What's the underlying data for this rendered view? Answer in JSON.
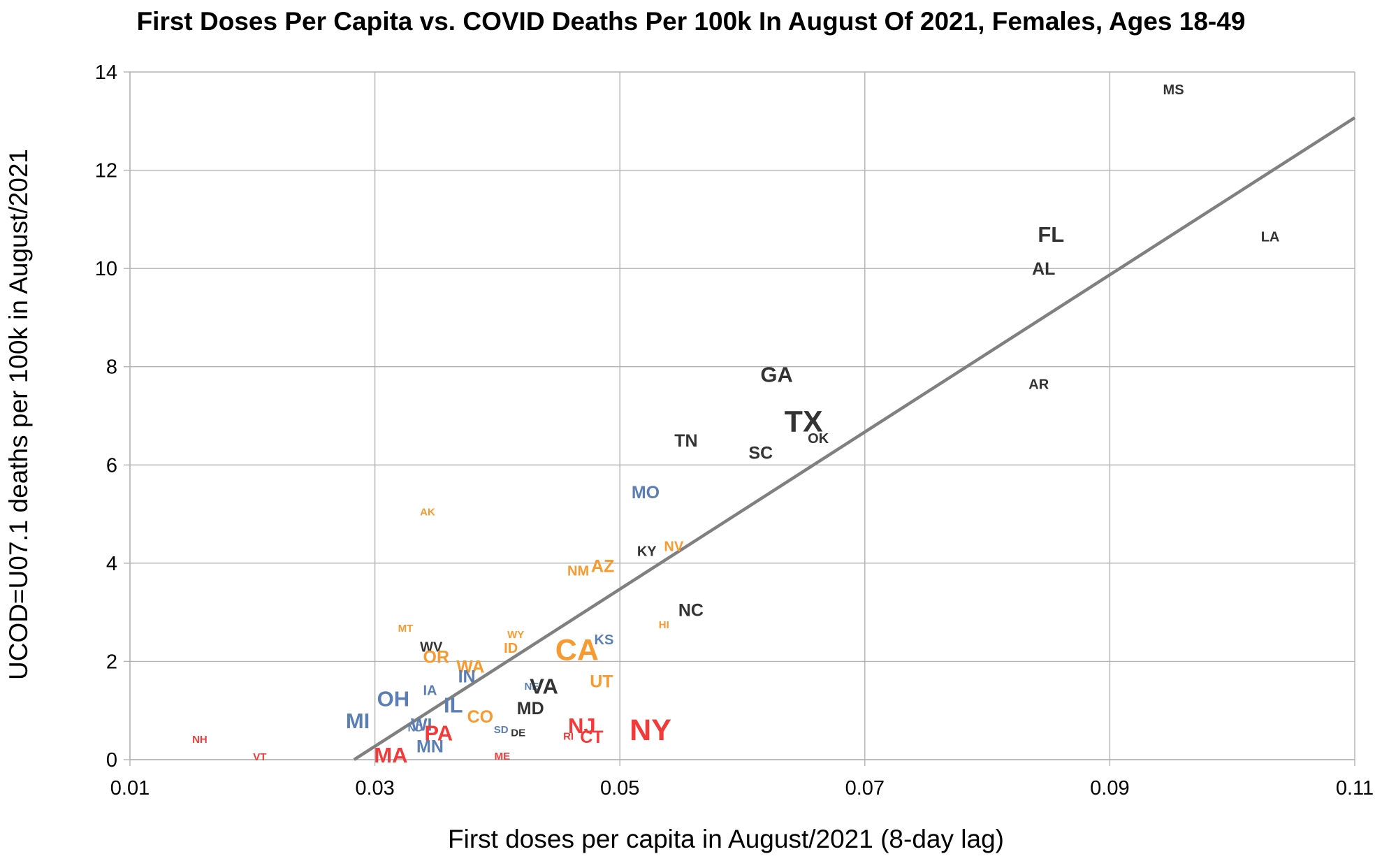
{
  "chart_data": {
    "type": "scatter",
    "title": "First Doses Per Capita vs. COVID Deaths Per 100k In August Of 2021, Females, Ages 18-49",
    "xlabel": "First doses per capita in August/2021 (8-day lag)",
    "ylabel": "UCOD=U07.1 deaths per 100k in August/2021",
    "xlim": [
      0.01,
      0.11
    ],
    "ylim": [
      0,
      14
    ],
    "x_ticks": [
      0.01,
      0.03,
      0.05,
      0.07,
      0.09,
      0.11
    ],
    "x_tick_labels": [
      "0.01",
      "0.03",
      "0.05",
      "0.07",
      "0.09",
      "0.11"
    ],
    "y_ticks": [
      0,
      2,
      4,
      6,
      8,
      10,
      12,
      14
    ],
    "y_tick_labels": [
      "0",
      "2",
      "4",
      "6",
      "8",
      "10",
      "12",
      "14"
    ],
    "grid": true,
    "legend": "none",
    "colors": {
      "red": "#f33a3a",
      "blue": "#5b7fb4",
      "orange": "#f79a30",
      "black": "#333333",
      "trendline": "#808080",
      "grid": "#b3b3b3"
    },
    "trendline": {
      "points": [
        {
          "x": 0.0283,
          "y": 0
        },
        {
          "x": 0.11,
          "y": 13.07
        }
      ]
    },
    "points": [
      {
        "label": "MS",
        "x": 0.0952,
        "y": 13.65,
        "color": "black",
        "size": "small"
      },
      {
        "label": "LA",
        "x": 0.1031,
        "y": 10.65,
        "color": "black",
        "size": "small"
      },
      {
        "label": "FL",
        "x": 0.0852,
        "y": 10.7,
        "color": "black",
        "size": "large"
      },
      {
        "label": "AL",
        "x": 0.0846,
        "y": 10.0,
        "color": "black",
        "size": "medium"
      },
      {
        "label": "AR",
        "x": 0.0842,
        "y": 7.65,
        "color": "black",
        "size": "small"
      },
      {
        "label": "GA",
        "x": 0.0628,
        "y": 7.85,
        "color": "black",
        "size": "large"
      },
      {
        "label": "TX",
        "x": 0.065,
        "y": 6.9,
        "color": "black",
        "size": "xlarge"
      },
      {
        "label": "OK",
        "x": 0.0662,
        "y": 6.55,
        "color": "black",
        "size": "small"
      },
      {
        "label": "SC",
        "x": 0.0615,
        "y": 6.25,
        "color": "black",
        "size": "medium"
      },
      {
        "label": "TN",
        "x": 0.0554,
        "y": 6.5,
        "color": "black",
        "size": "medium"
      },
      {
        "label": "MO",
        "x": 0.0521,
        "y": 5.45,
        "color": "blue",
        "size": "medium"
      },
      {
        "label": "KY",
        "x": 0.0522,
        "y": 4.25,
        "color": "black",
        "size": "small"
      },
      {
        "label": "NV",
        "x": 0.0544,
        "y": 4.35,
        "color": "orange",
        "size": "small"
      },
      {
        "label": "NC",
        "x": 0.0558,
        "y": 3.05,
        "color": "black",
        "size": "medium"
      },
      {
        "label": "HI",
        "x": 0.0536,
        "y": 2.75,
        "color": "orange",
        "size": "xsmall"
      },
      {
        "label": "AZ",
        "x": 0.0486,
        "y": 3.95,
        "color": "orange",
        "size": "medium"
      },
      {
        "label": "NM",
        "x": 0.0466,
        "y": 3.85,
        "color": "orange",
        "size": "small"
      },
      {
        "label": "AK",
        "x": 0.0343,
        "y": 5.05,
        "color": "orange",
        "size": "xsmall"
      },
      {
        "label": "MT",
        "x": 0.0325,
        "y": 2.68,
        "color": "orange",
        "size": "xsmall"
      },
      {
        "label": "WY",
        "x": 0.0415,
        "y": 2.55,
        "color": "orange",
        "size": "xsmall"
      },
      {
        "label": "ID",
        "x": 0.0411,
        "y": 2.28,
        "color": "orange",
        "size": "small"
      },
      {
        "label": "WV",
        "x": 0.0346,
        "y": 2.3,
        "color": "black",
        "size": "small"
      },
      {
        "label": "OR",
        "x": 0.035,
        "y": 2.1,
        "color": "orange",
        "size": "medium"
      },
      {
        "label": "WA",
        "x": 0.0378,
        "y": 1.9,
        "color": "orange",
        "size": "medium"
      },
      {
        "label": "CA",
        "x": 0.0465,
        "y": 2.25,
        "color": "orange",
        "size": "xlarge"
      },
      {
        "label": "KS",
        "x": 0.0487,
        "y": 2.45,
        "color": "blue",
        "size": "small"
      },
      {
        "label": "UT",
        "x": 0.0485,
        "y": 1.6,
        "color": "orange",
        "size": "medium"
      },
      {
        "label": "IN",
        "x": 0.0375,
        "y": 1.7,
        "color": "blue",
        "size": "medium"
      },
      {
        "label": "IA",
        "x": 0.0345,
        "y": 1.42,
        "color": "blue",
        "size": "small"
      },
      {
        "label": "NE",
        "x": 0.0428,
        "y": 1.5,
        "color": "blue",
        "size": "xsmall"
      },
      {
        "label": "VA",
        "x": 0.0438,
        "y": 1.5,
        "color": "black",
        "size": "large"
      },
      {
        "label": "OH",
        "x": 0.0315,
        "y": 1.25,
        "color": "blue",
        "size": "large"
      },
      {
        "label": "IL",
        "x": 0.0364,
        "y": 1.12,
        "color": "blue",
        "size": "large"
      },
      {
        "label": "MD",
        "x": 0.0427,
        "y": 1.05,
        "color": "black",
        "size": "medium"
      },
      {
        "label": "CO",
        "x": 0.0386,
        "y": 0.88,
        "color": "orange",
        "size": "medium"
      },
      {
        "label": "MI",
        "x": 0.0286,
        "y": 0.8,
        "color": "blue",
        "size": "large"
      },
      {
        "label": "WI",
        "x": 0.0338,
        "y": 0.72,
        "color": "blue",
        "size": "medium"
      },
      {
        "label": "ND",
        "x": 0.0333,
        "y": 0.65,
        "color": "blue",
        "size": "xsmall"
      },
      {
        "label": "PA",
        "x": 0.0352,
        "y": 0.55,
        "color": "red",
        "size": "large"
      },
      {
        "label": "SD",
        "x": 0.0403,
        "y": 0.62,
        "color": "blue",
        "size": "xsmall"
      },
      {
        "label": "DE",
        "x": 0.0417,
        "y": 0.55,
        "color": "black",
        "size": "xsmall"
      },
      {
        "label": "NJ",
        "x": 0.0469,
        "y": 0.7,
        "color": "red",
        "size": "large"
      },
      {
        "label": "RI",
        "x": 0.0458,
        "y": 0.48,
        "color": "red",
        "size": "xsmall"
      },
      {
        "label": "CT",
        "x": 0.0477,
        "y": 0.47,
        "color": "red",
        "size": "medium"
      },
      {
        "label": "NY",
        "x": 0.0525,
        "y": 0.62,
        "color": "red",
        "size": "xlarge"
      },
      {
        "label": "MN",
        "x": 0.0345,
        "y": 0.28,
        "color": "blue",
        "size": "medium"
      },
      {
        "label": "MA",
        "x": 0.0313,
        "y": 0.1,
        "color": "red",
        "size": "large"
      },
      {
        "label": "ME",
        "x": 0.0404,
        "y": 0.08,
        "color": "red",
        "size": "xsmall"
      },
      {
        "label": "NH",
        "x": 0.0157,
        "y": 0.42,
        "color": "red",
        "size": "xsmall"
      },
      {
        "label": "VT",
        "x": 0.0206,
        "y": 0.06,
        "color": "red",
        "size": "xsmall"
      }
    ]
  }
}
